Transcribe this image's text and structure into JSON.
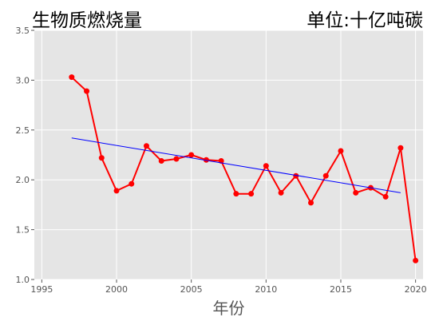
{
  "chart_data": {
    "type": "line",
    "title": "生物质燃烧量",
    "subtitle": "单位:十亿吨碳",
    "xlabel": "年份",
    "ylabel": "",
    "xlim": [
      1994.5,
      2020.5
    ],
    "ylim": [
      1.0,
      3.5
    ],
    "xticks": [
      1995,
      2000,
      2005,
      2010,
      2015,
      2020
    ],
    "yticks": [
      1.0,
      1.5,
      2.0,
      2.5,
      3.0,
      3.5
    ],
    "grid": true,
    "series": [
      {
        "type": "line",
        "color": "#ff0000",
        "x": [
          1997,
          1998,
          1999,
          2000,
          2001,
          2002,
          2003,
          2004,
          2005,
          2006,
          2007,
          2008,
          2009,
          2010,
          2011,
          2012,
          2013,
          2014,
          2015,
          2016,
          2017,
          2018,
          2019,
          2020
        ],
        "values": [
          3.03,
          2.89,
          2.22,
          1.89,
          1.96,
          2.34,
          2.19,
          2.21,
          2.25,
          2.2,
          2.19,
          1.86,
          1.86,
          2.14,
          1.87,
          2.04,
          1.77,
          2.04,
          2.29,
          1.87,
          1.92,
          1.83,
          2.32,
          1.19
        ]
      },
      {
        "type": "trend",
        "color": "#0000ff",
        "x": [
          1997,
          2019
        ],
        "values": [
          2.42,
          1.87
        ]
      }
    ]
  }
}
